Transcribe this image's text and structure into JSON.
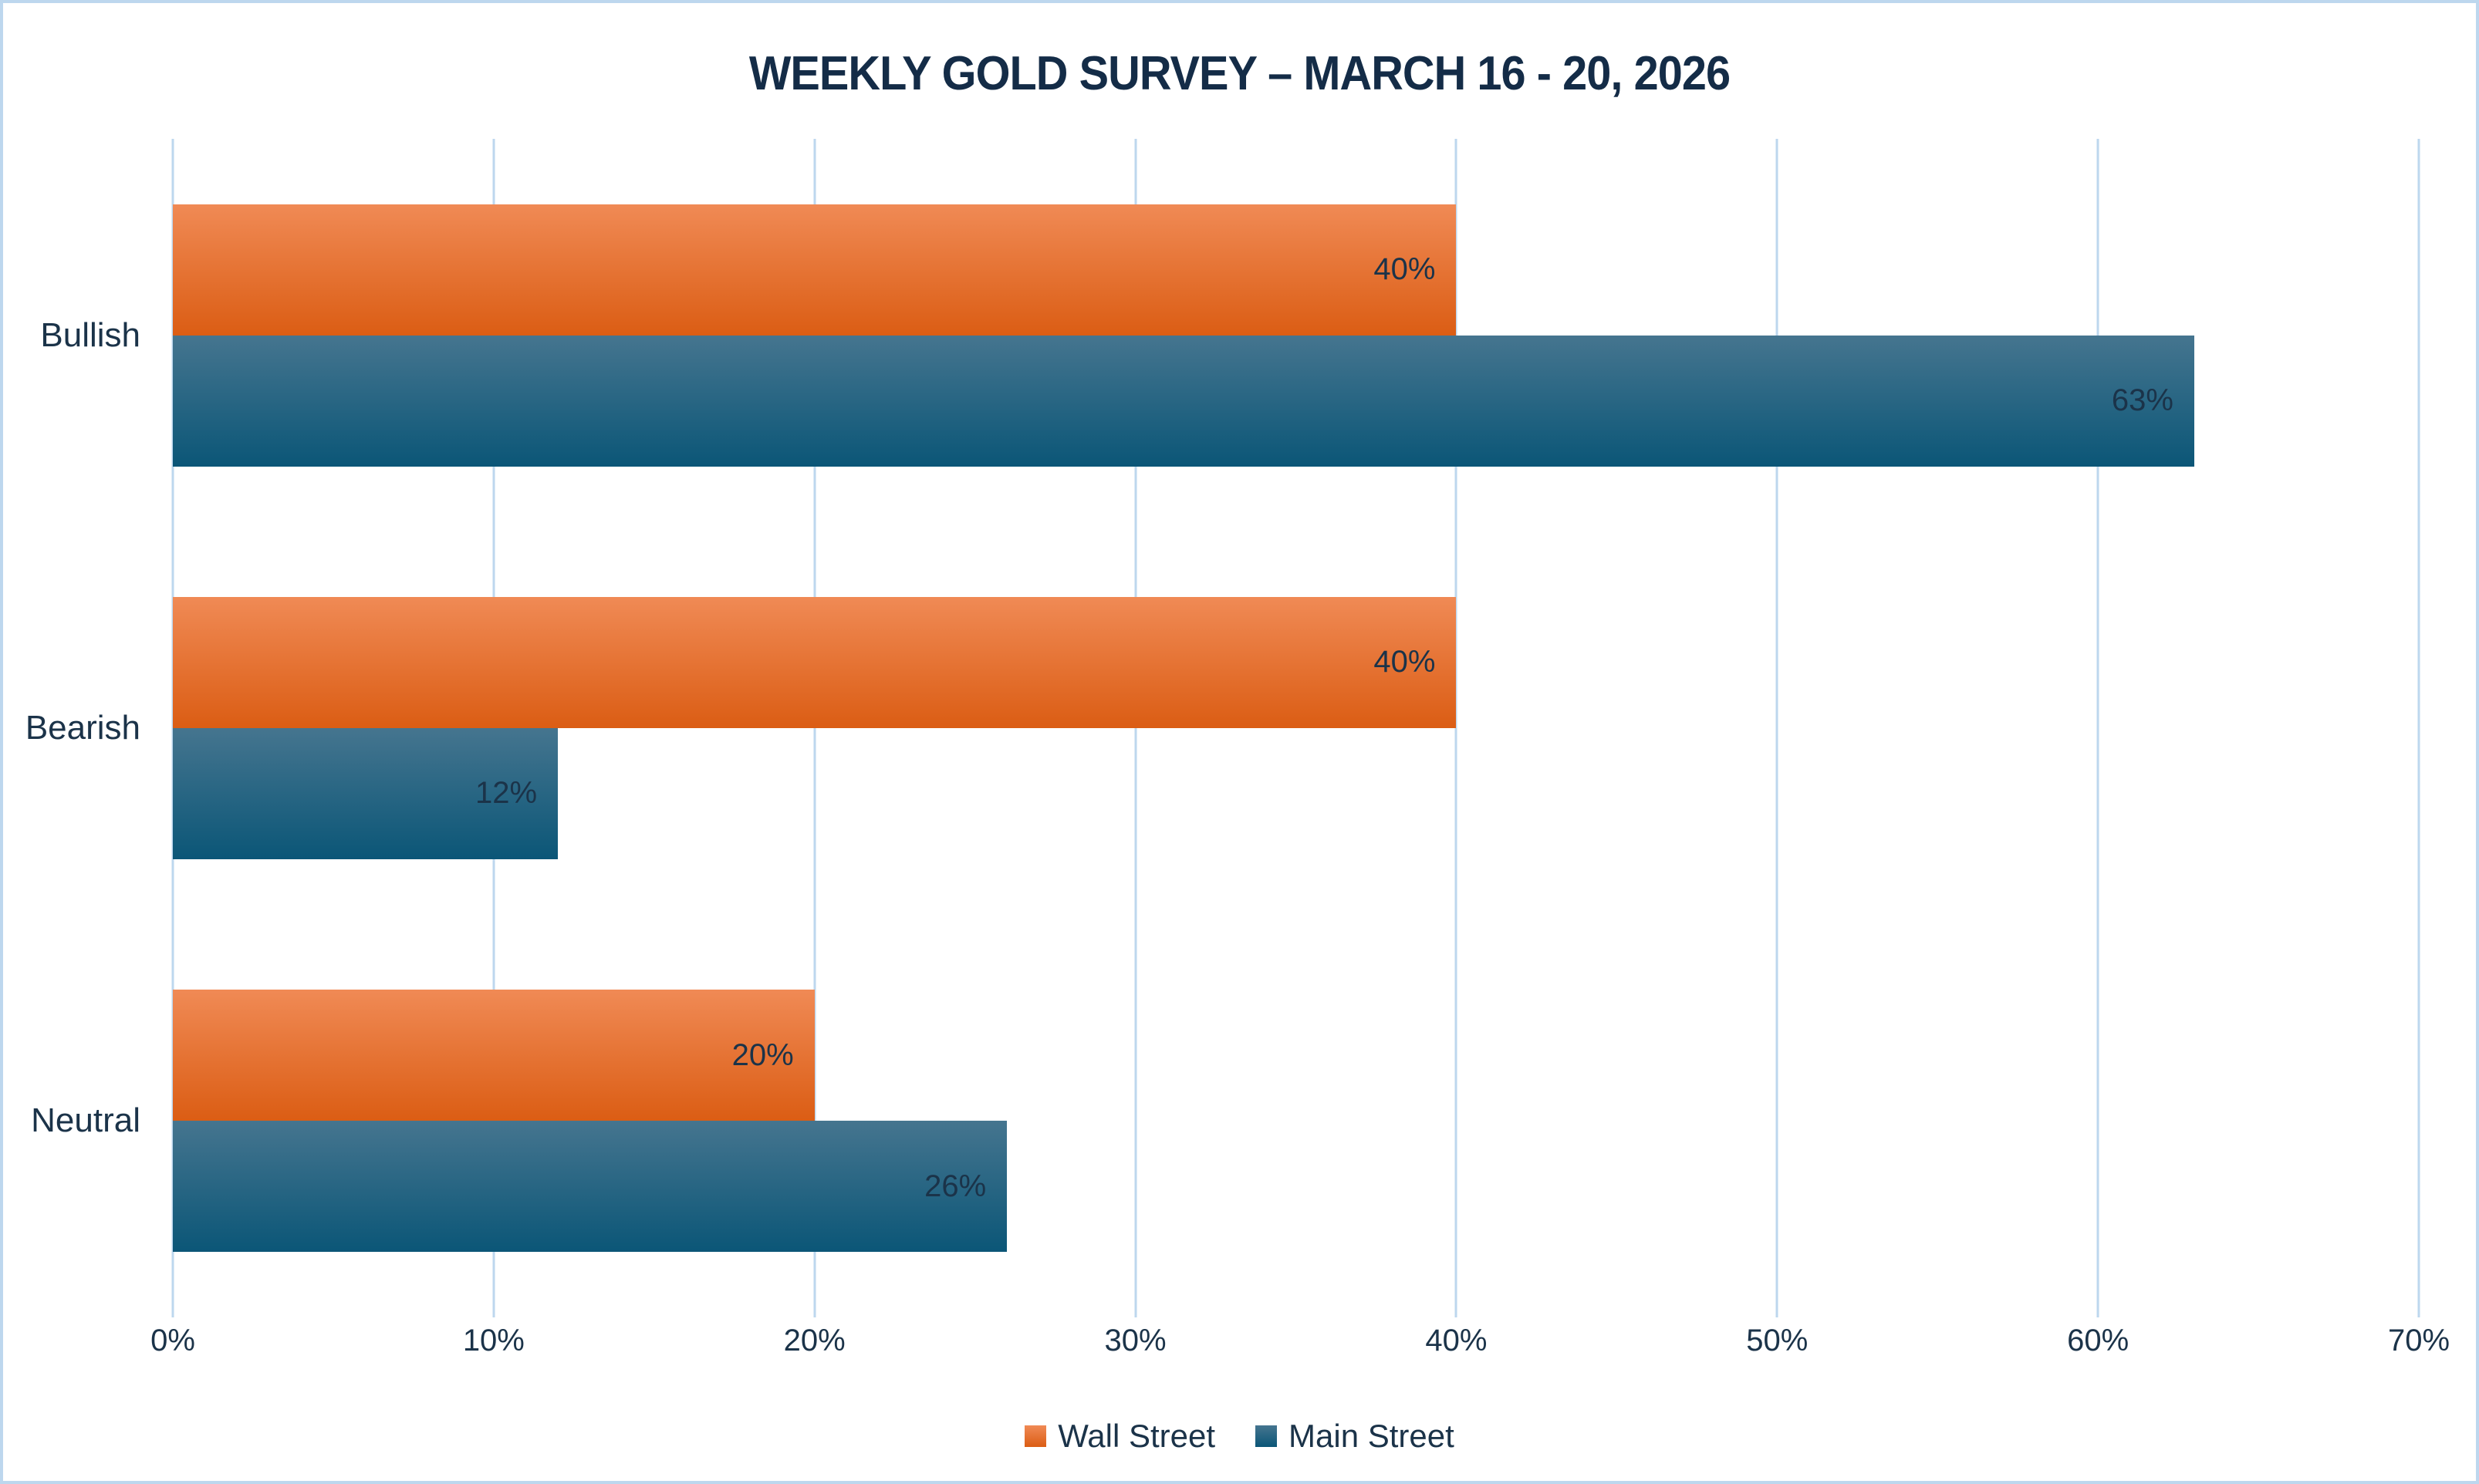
{
  "chart_data": {
    "type": "bar",
    "orientation": "horizontal",
    "title": "WEEKLY GOLD SURVEY – MARCH 16 - 20, 2026",
    "categories": [
      "Bullish",
      "Bearish",
      "Neutral"
    ],
    "series": [
      {
        "name": "Wall Street",
        "values": [
          40,
          40,
          20
        ],
        "color_top": "#F08A55",
        "color_bottom": "#DB5D14"
      },
      {
        "name": "Main Street",
        "values": [
          63,
          12,
          26
        ],
        "color_top": "#45758F",
        "color_bottom": "#0B5677"
      }
    ],
    "value_suffix": "%",
    "x_ticks": [
      "0%",
      "10%",
      "20%",
      "30%",
      "40%",
      "50%",
      "60%",
      "70%"
    ],
    "xlim": [
      0,
      70
    ],
    "grid": true,
    "legend_position": "bottom",
    "data_label_position": "inside-end"
  },
  "colors": {
    "background": "#FFFFFF",
    "frame_border": "#BDD7EE",
    "gridline": "#BDD7EE",
    "title_text": "#142C47",
    "axis_text": "#1B3349",
    "data_label_text": "#1B3349"
  }
}
